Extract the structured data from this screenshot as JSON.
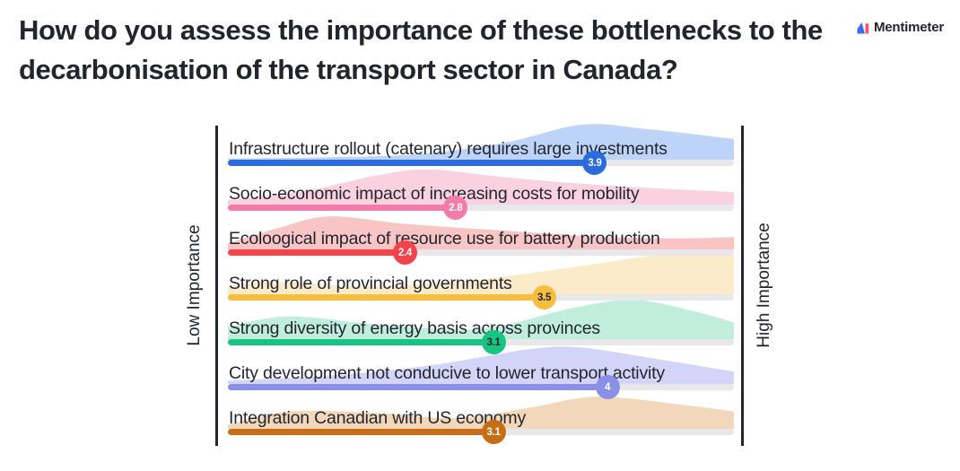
{
  "title": "How do you assess the importance of these bottlenecks to the decarbonisation of the transport sector in Canada?",
  "brand": {
    "name": "Mentimeter"
  },
  "axis": {
    "left_label": "Low Importance",
    "right_label": "High Importance"
  },
  "colors": {
    "track": "#E8E8EA",
    "axis_line": "#23262F",
    "text": "#23262F"
  },
  "chart_data": {
    "type": "scale",
    "scale_min": 1,
    "scale_max": 5,
    "xlabel_low": "Low Importance",
    "xlabel_high": "High Importance",
    "rows": [
      {
        "label": "Infrastructure rollout (catenary) requires large investments",
        "value": 3.9,
        "display_value": "3.9",
        "color": "#2A6BE2",
        "tint": "#BDD3F8",
        "badge_text_color": "#FFFFFF",
        "curve": [
          [
            0,
            0.03
          ],
          [
            0.2,
            0.06
          ],
          [
            0.38,
            0.14
          ],
          [
            0.55,
            0.42
          ],
          [
            0.7,
            0.85
          ],
          [
            0.83,
            0.74
          ],
          [
            1,
            0.5
          ]
        ]
      },
      {
        "label": "Socio-economic impact of increasing costs for mobility",
        "value": 2.8,
        "display_value": "2.8",
        "color": "#F57CA8",
        "tint": "#FAD1DF",
        "badge_text_color": "#FFFFFF",
        "curve": [
          [
            0,
            0.1
          ],
          [
            0.15,
            0.32
          ],
          [
            0.3,
            0.72
          ],
          [
            0.4,
            0.85
          ],
          [
            0.55,
            0.66
          ],
          [
            0.75,
            0.46
          ],
          [
            1,
            0.3
          ]
        ]
      },
      {
        "label": "Ecoloogical impact of resource use for battery production",
        "value": 2.4,
        "display_value": "2.4",
        "color": "#F4434B",
        "tint": "#F8C4C4",
        "badge_text_color": "#FFFFFF",
        "curve": [
          [
            0,
            0.15
          ],
          [
            0.1,
            0.52
          ],
          [
            0.2,
            0.8
          ],
          [
            0.35,
            0.62
          ],
          [
            0.55,
            0.45
          ],
          [
            0.75,
            0.3
          ],
          [
            0.9,
            0.27
          ],
          [
            1,
            0.3
          ]
        ]
      },
      {
        "label": "Strong role of provincial governments",
        "value": 3.5,
        "display_value": "3.5",
        "color": "#F6BE3C",
        "tint": "#FBEBC8",
        "badge_text_color": "#23262F",
        "curve": [
          [
            0,
            0.2
          ],
          [
            0.1,
            0.3
          ],
          [
            0.25,
            0.2
          ],
          [
            0.45,
            0.3
          ],
          [
            0.65,
            0.6
          ],
          [
            0.85,
            0.95
          ],
          [
            0.95,
            1.0
          ],
          [
            1,
            0.95
          ]
        ]
      },
      {
        "label": "Strong diversity of energy basis across provinces",
        "value": 3.1,
        "display_value": "3.1",
        "color": "#17C482",
        "tint": "#C0EDDC",
        "badge_text_color": "#23262F",
        "curve": [
          [
            0,
            0.3
          ],
          [
            0.12,
            0.55
          ],
          [
            0.3,
            0.35
          ],
          [
            0.5,
            0.25
          ],
          [
            0.68,
            0.75
          ],
          [
            0.8,
            0.95
          ],
          [
            0.92,
            0.68
          ],
          [
            1,
            0.4
          ]
        ]
      },
      {
        "label": "City development not conducive to lower transport activity",
        "value": 4,
        "display_value": "4",
        "color": "#8A90E8",
        "tint": "#D2D5F7",
        "badge_text_color": "#FFFFFF",
        "curve": [
          [
            0,
            0.08
          ],
          [
            0.2,
            0.2
          ],
          [
            0.4,
            0.45
          ],
          [
            0.6,
            0.85
          ],
          [
            0.7,
            0.88
          ],
          [
            0.85,
            0.6
          ],
          [
            1,
            0.3
          ]
        ]
      },
      {
        "label": "Integration Canadian with US economy",
        "value": 3.1,
        "display_value": "3.1",
        "color": "#C76D15",
        "tint": "#F2D7BA",
        "badge_text_color": "#FFFFFF",
        "curve": [
          [
            0,
            0.1
          ],
          [
            0.12,
            0.42
          ],
          [
            0.3,
            0.38
          ],
          [
            0.45,
            0.26
          ],
          [
            0.6,
            0.52
          ],
          [
            0.73,
            0.78
          ],
          [
            0.9,
            0.58
          ],
          [
            1,
            0.42
          ]
        ]
      }
    ]
  }
}
